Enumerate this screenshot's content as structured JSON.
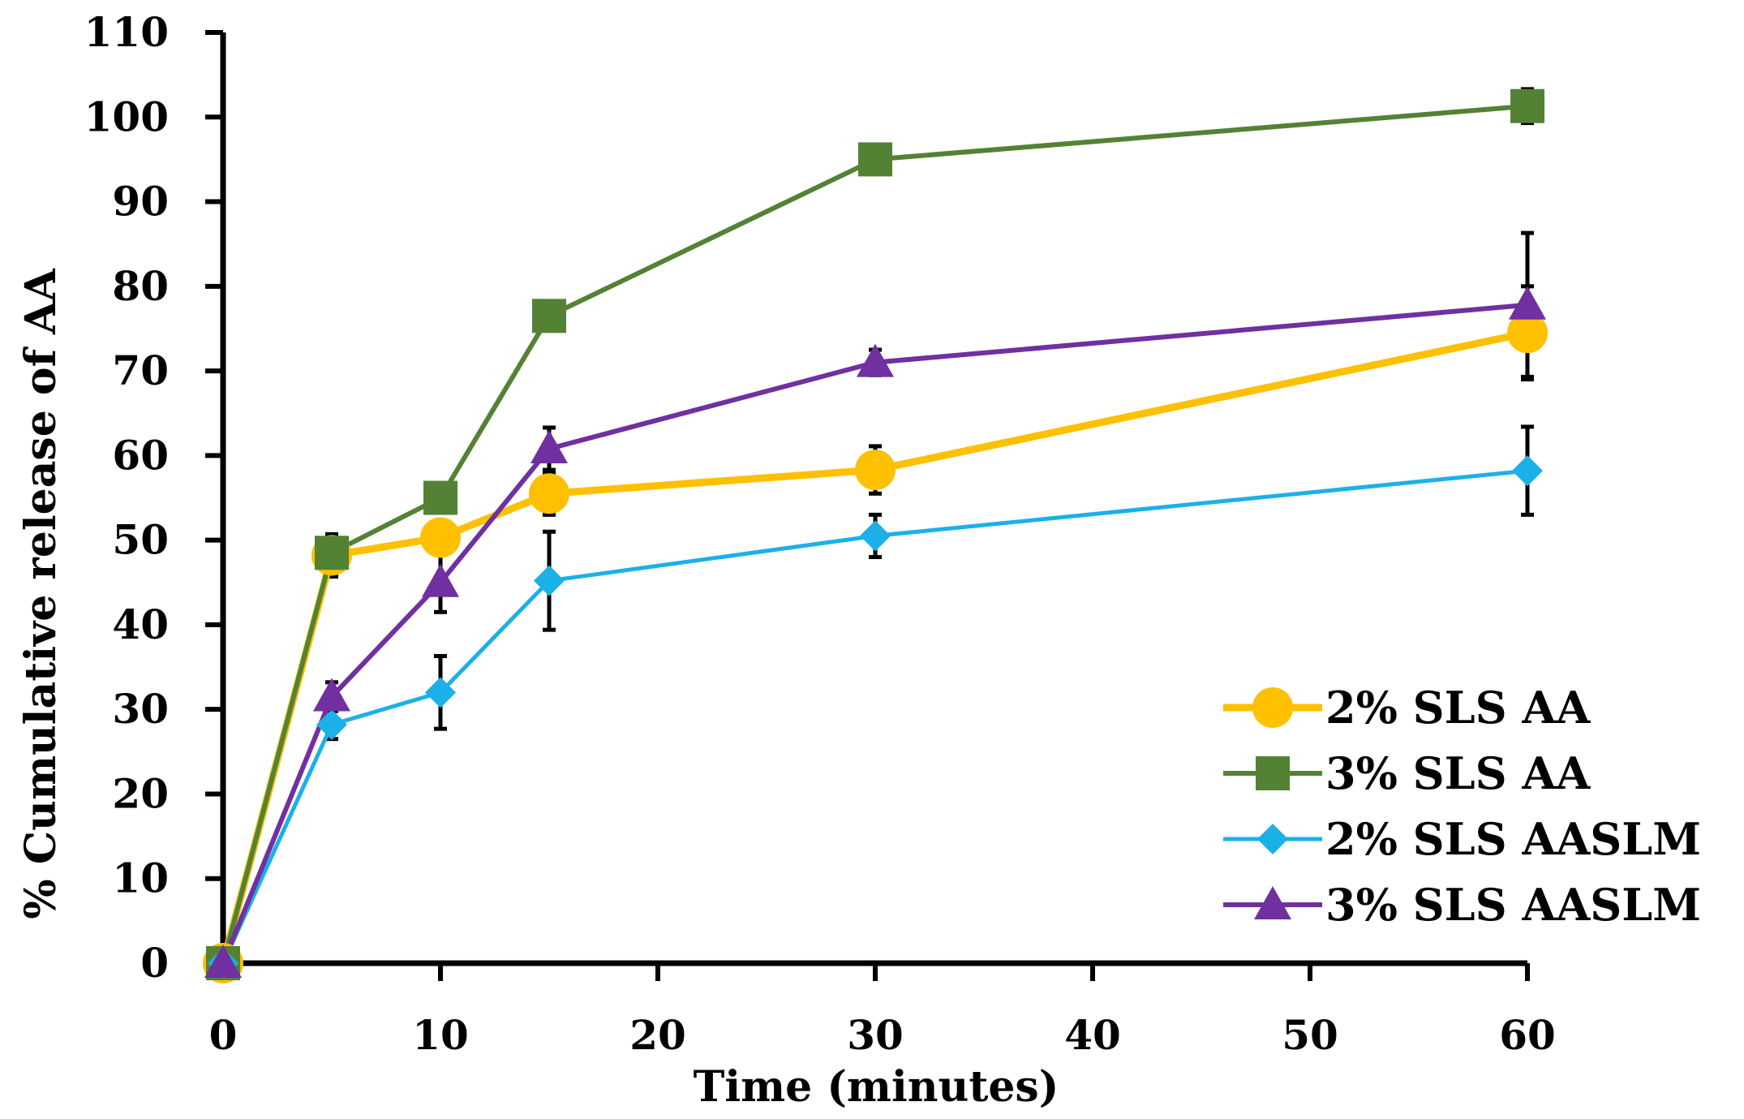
{
  "chart_data": {
    "type": "line",
    "title": "",
    "xlabel": "Time (minutes)",
    "ylabel": "% Cumulative release of AA",
    "xlim": [
      0,
      60
    ],
    "ylim": [
      0,
      110
    ],
    "x_ticks": [
      "0",
      "10",
      "20",
      "30",
      "40",
      "50",
      "60"
    ],
    "y_ticks": [
      "0",
      "10",
      "20",
      "30",
      "40",
      "50",
      "60",
      "70",
      "80",
      "90",
      "100",
      "110"
    ],
    "legend_position": "bottom-right",
    "grid": false,
    "x": [
      0,
      5,
      10,
      15,
      30,
      60
    ],
    "series": [
      {
        "name": "2% SLS AA",
        "color": "#FFC000",
        "marker": "circle",
        "values": [
          0,
          48.2,
          50.3,
          55.5,
          58.3,
          74.5
        ],
        "errors": [
          0,
          2.5,
          1.5,
          2.5,
          2.8,
          5.5
        ]
      },
      {
        "name": "3% SLS AA",
        "color": "#548235",
        "marker": "square",
        "values": [
          0,
          48.5,
          55.0,
          76.5,
          95.0,
          101.3
        ],
        "errors": [
          0,
          2.0,
          1.0,
          1.5,
          1.0,
          2.0
        ]
      },
      {
        "name": "2% SLS AASLM",
        "color": "#1CB0E8",
        "marker": "diamond",
        "values": [
          0,
          28.2,
          32.0,
          45.2,
          50.5,
          58.2
        ],
        "errors": [
          0,
          1.7,
          4.3,
          5.8,
          2.5,
          5.2
        ]
      },
      {
        "name": "3% SLS AASLM",
        "color": "#7030A0",
        "marker": "triangle",
        "values": [
          0,
          31.5,
          45.0,
          60.8,
          71.0,
          77.8
        ],
        "errors": [
          0,
          1.7,
          3.5,
          2.5,
          1.5,
          8.5
        ]
      }
    ]
  }
}
